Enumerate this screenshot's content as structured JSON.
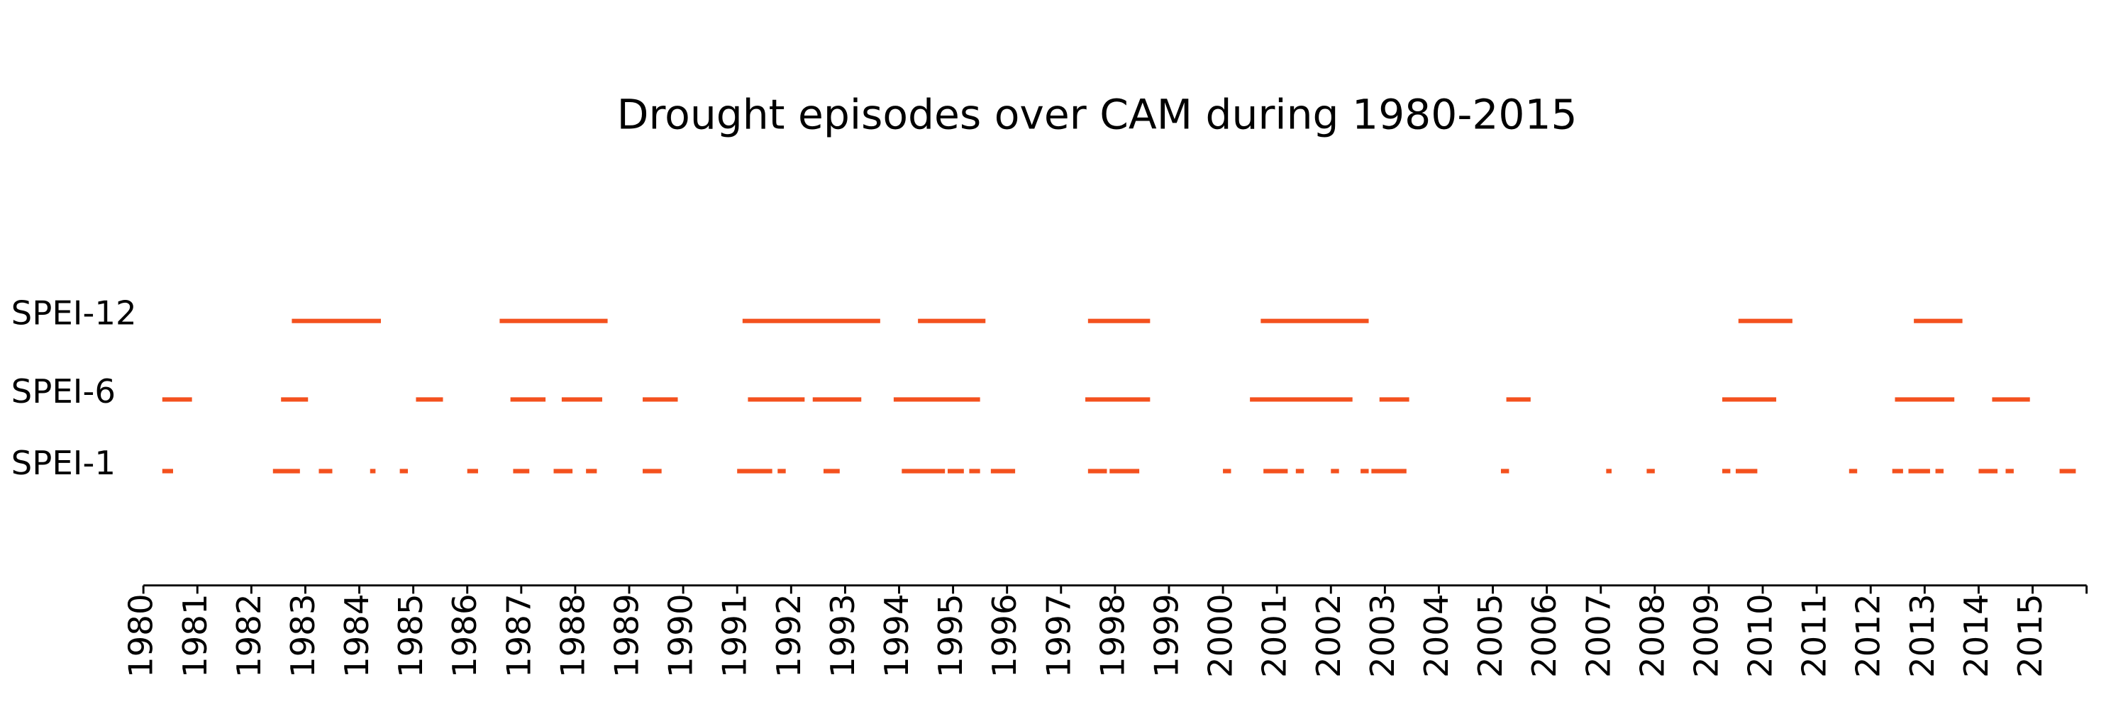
{
  "chart_data": {
    "type": "timeline",
    "title": "Drought episodes over CAM during 1980-2015",
    "xlim": [
      1980,
      2016
    ],
    "xticks": [
      1980,
      1981,
      1982,
      1983,
      1984,
      1985,
      1986,
      1987,
      1988,
      1989,
      1990,
      1991,
      1992,
      1993,
      1994,
      1995,
      1996,
      1997,
      1998,
      1999,
      2000,
      2001,
      2002,
      2003,
      2004,
      2005,
      2006,
      2007,
      2008,
      2009,
      2010,
      2011,
      2012,
      2013,
      2014,
      2015
    ],
    "series": [
      {
        "name": "SPEI-12",
        "color": "#f4511e",
        "episodes": [
          [
            1982.75,
            1984.4
          ],
          [
            1986.6,
            1988.6
          ],
          [
            1991.1,
            1993.65
          ],
          [
            1994.35,
            1995.6
          ],
          [
            1997.5,
            1998.65
          ],
          [
            2000.7,
            2002.7
          ],
          [
            2009.55,
            2010.55
          ],
          [
            2012.8,
            2013.7
          ]
        ]
      },
      {
        "name": "SPEI-6",
        "color": "#f4511e",
        "episodes": [
          [
            1980.35,
            1980.9
          ],
          [
            1982.55,
            1983.05
          ],
          [
            1985.05,
            1985.55
          ],
          [
            1986.8,
            1987.45
          ],
          [
            1987.75,
            1988.5
          ],
          [
            1989.25,
            1989.9
          ],
          [
            1991.2,
            1992.25
          ],
          [
            1992.4,
            1993.3
          ],
          [
            1993.9,
            1995.5
          ],
          [
            1997.45,
            1998.65
          ],
          [
            2000.5,
            2002.4
          ],
          [
            2002.9,
            2003.45
          ],
          [
            2005.25,
            2005.7
          ],
          [
            2009.25,
            2010.25
          ],
          [
            2012.45,
            2013.55
          ],
          [
            2014.25,
            2014.95
          ]
        ]
      },
      {
        "name": "SPEI-1",
        "color": "#f4511e",
        "episodes": [
          [
            1980.35,
            1980.55
          ],
          [
            1982.4,
            1982.9
          ],
          [
            1983.25,
            1983.5
          ],
          [
            1984.2,
            1984.3
          ],
          [
            1984.75,
            1984.9
          ],
          [
            1986.0,
            1986.2
          ],
          [
            1986.85,
            1987.15
          ],
          [
            1987.6,
            1987.95
          ],
          [
            1988.2,
            1988.4
          ],
          [
            1989.25,
            1989.6
          ],
          [
            1991.0,
            1991.65
          ],
          [
            1991.75,
            1991.9
          ],
          [
            1992.6,
            1992.9
          ],
          [
            1994.05,
            1994.85
          ],
          [
            1994.9,
            1995.2
          ],
          [
            1995.3,
            1995.5
          ],
          [
            1995.7,
            1996.15
          ],
          [
            1997.5,
            1997.85
          ],
          [
            1997.9,
            1998.45
          ],
          [
            2000.0,
            2000.15
          ],
          [
            2000.75,
            2001.2
          ],
          [
            2001.35,
            2001.5
          ],
          [
            2002.0,
            2002.15
          ],
          [
            2002.55,
            2002.7
          ],
          [
            2002.75,
            2003.4
          ],
          [
            2005.15,
            2005.3
          ],
          [
            2007.1,
            2007.2
          ],
          [
            2007.85,
            2008.0
          ],
          [
            2009.25,
            2009.4
          ],
          [
            2009.5,
            2009.9
          ],
          [
            2011.6,
            2011.75
          ],
          [
            2012.4,
            2012.6
          ],
          [
            2012.7,
            2013.1
          ],
          [
            2013.2,
            2013.35
          ],
          [
            2014.0,
            2014.35
          ],
          [
            2014.5,
            2014.65
          ],
          [
            2015.5,
            2015.8
          ]
        ]
      }
    ]
  }
}
